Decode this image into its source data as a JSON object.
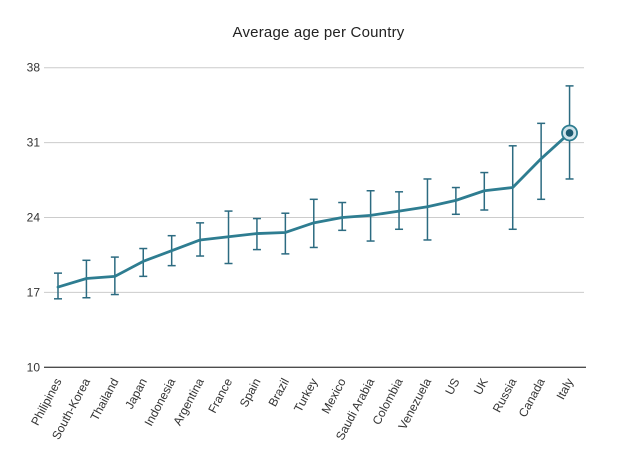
{
  "chart_data": {
    "type": "line",
    "title": "Average age per Country",
    "categories": [
      "Philipines",
      "South-Korea",
      "Thailand",
      "Japan",
      "Indonesia",
      "Argentina",
      "France",
      "Spain",
      "Brazil",
      "Turkey",
      "Mexico",
      "Saudi Arabia",
      "Colombia",
      "Venezuela",
      "US",
      "UK",
      "Russia",
      "Canada",
      "Italy"
    ],
    "series": [
      {
        "name": "Average age",
        "values": [
          17.5,
          18.3,
          18.5,
          19.9,
          20.9,
          21.9,
          22.2,
          22.5,
          22.6,
          23.5,
          24.0,
          24.2,
          24.6,
          25.0,
          25.6,
          26.5,
          26.8,
          29.5,
          31.9
        ],
        "error_low": [
          16.4,
          16.5,
          16.8,
          18.5,
          19.5,
          20.4,
          19.7,
          21.0,
          20.6,
          21.2,
          22.8,
          21.8,
          22.9,
          21.9,
          24.3,
          24.7,
          22.9,
          25.7,
          27.6
        ],
        "error_high": [
          18.8,
          20.0,
          20.3,
          21.1,
          22.3,
          23.5,
          24.6,
          23.9,
          24.4,
          25.7,
          25.4,
          26.5,
          26.4,
          27.6,
          26.8,
          28.2,
          30.7,
          32.8,
          36.3
        ]
      }
    ],
    "xlabel": "",
    "ylabel": "",
    "yticks": [
      10,
      17,
      24,
      31,
      38
    ],
    "ylim": [
      10,
      38
    ],
    "grid": true,
    "legend": false,
    "x_label_rotation_deg": -62,
    "highlight_index": 18,
    "highlight_category": "Italy",
    "colors": {
      "line": "#2e7d91",
      "error_bar": "#2c6b81",
      "highlight_dot": "#1d5a70",
      "highlight_ring_fill": "#cfe3ea",
      "gridline": "#cccccc",
      "axis": "#4d4d4d",
      "text": "#333333",
      "title_text": "#222222"
    }
  }
}
